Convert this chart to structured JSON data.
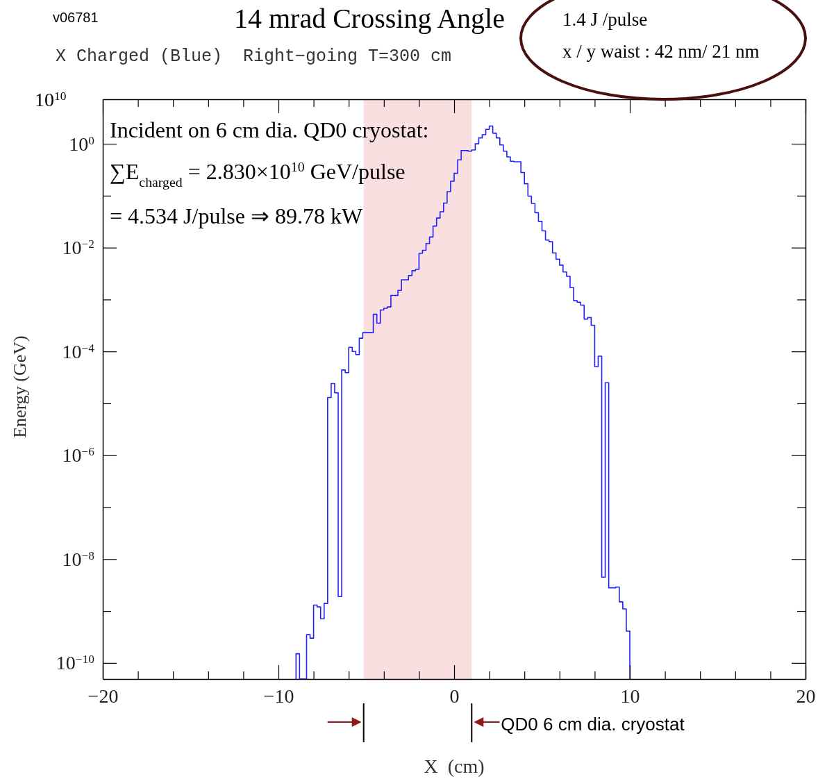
{
  "chart_data": {
    "type": "histogram",
    "title": "14 mrad Crossing Angle",
    "subtitle": "X Charged (Blue)  Right−going T=300 cm",
    "xlabel": "X  (cm)",
    "ylabel": "Energy (GeV)",
    "annotations": [
      "10$^{10}$",
      "v06781",
      "1.4 J /pulse",
      "x / y waist : 42 nm/ 21 nm",
      "Incident on 6 cm dia. QD0 cryostat:",
      "∑E$_{charged}$ = 2.830×10$^{10}$ GeV/pulse",
      "= 4.534 J/pulse ⇒ 89.78 kW"
    ],
    "bins": [
      -9.0,
      -8.8,
      -8.6,
      -8.4,
      -8.2,
      -8.0,
      -7.8,
      -7.6,
      -7.4,
      -7.2,
      -7.0,
      -6.8,
      -6.6,
      -6.4,
      -6.2,
      -6.0,
      -5.8,
      -5.6,
      -5.4,
      -5.2,
      -5.0,
      -4.8,
      -4.6,
      -4.4,
      -4.2,
      -4.0,
      -3.8,
      -3.6,
      -3.4,
      -3.2,
      -3.0,
      -2.8,
      -2.6,
      -2.4,
      -2.2,
      -2.0,
      -1.8,
      -1.6,
      -1.4,
      -1.2,
      -1.0,
      -0.8,
      -0.6,
      -0.4,
      -0.2,
      0.0,
      0.2,
      0.4,
      0.6,
      0.8,
      1.0,
      1.2,
      1.4,
      1.6,
      1.8,
      2.0,
      2.2,
      2.4,
      2.6,
      2.8,
      3.0,
      3.2,
      3.4,
      3.6,
      3.8,
      4.0,
      4.2,
      4.4,
      4.6,
      4.8,
      5.0,
      5.2,
      5.4,
      5.6,
      5.8,
      6.0,
      6.2,
      6.4,
      6.6,
      6.8,
      7.0,
      7.2,
      7.4,
      7.6,
      7.8,
      8.0,
      8.2,
      8.4,
      8.6,
      8.8,
      9.0,
      9.2,
      9.4,
      9.6,
      9.8,
      10.0
    ],
    "values": [
      1.5e-10,
      null,
      null,
      3.5e-10,
      3e-10,
      1.3e-09,
      1.2e-09,
      7.1e-10,
      1.4e-09,
      1.3e-05,
      2.4e-05,
      1.6e-05,
      1.9e-09,
      4.4e-05,
      3.9e-05,
      0.00012,
      0.0001,
      8.7e-05,
      0.00018,
      0.00023,
      0.00023,
      0.00023,
      0.00052,
      0.00035,
      0.00063,
      0.00068,
      0.00072,
      0.0012,
      0.0012,
      0.0015,
      0.0024,
      0.0024,
      0.0029,
      0.0036,
      0.0038,
      0.0078,
      0.0089,
      0.012,
      0.016,
      0.026,
      0.037,
      0.049,
      0.072,
      0.12,
      0.19,
      0.27,
      0.49,
      0.74,
      0.74,
      0.72,
      0.76,
      1.0,
      1.3,
      1.5,
      1.9,
      2.2,
      1.6,
      1.3,
      0.95,
      0.72,
      0.56,
      0.46,
      0.45,
      0.45,
      0.28,
      0.17,
      0.098,
      0.071,
      0.047,
      0.032,
      0.021,
      0.014,
      0.013,
      0.0079,
      0.006,
      0.0046,
      0.0034,
      0.0028,
      0.0017,
      0.00095,
      0.00089,
      0.00078,
      0.00042,
      0.00045,
      0.00032,
      5.1e-05,
      8.1e-05,
      4.5e-09,
      2.5e-05,
      2.8e-09,
      2.8e-09,
      2.9e-09,
      1.5e-09,
      1.1e-09,
      4.1e-10
    ],
    "color": "#2020ff",
    "log": "y",
    "xlim": [
      -20,
      20
    ],
    "xticks": [
      -20,
      {
        "value": -18,
        "label": null
      },
      {
        "value": -16,
        "label": null
      },
      {
        "value": -14,
        "label": null
      },
      {
        "value": -12,
        "label": null
      },
      {
        "value": -10,
        "label": "−10"
      },
      {
        "value": -8,
        "label": null
      },
      {
        "value": -6,
        "label": null
      },
      {
        "value": -4,
        "label": null
      },
      {
        "value": -2,
        "label": null
      },
      0,
      {
        "value": 2,
        "label": null
      },
      {
        "value": 4,
        "label": null
      },
      {
        "value": 6,
        "label": null
      },
      {
        "value": 8,
        "label": null
      },
      10,
      {
        "value": 12,
        "label": null
      },
      {
        "value": 14,
        "label": null
      },
      {
        "value": 16,
        "label": null
      },
      {
        "value": 18,
        "label": null
      },
      20
    ],
    "ylim": [
      4.9e-11,
      7.2
    ],
    "yticks": [
      {
        "value": 1e-10,
        "label": "10$^{−10}$"
      },
      {
        "value": 1e-09,
        "label": null
      },
      {
        "value": 1e-08,
        "label": "10$^{−8}$"
      },
      {
        "value": 1e-07,
        "label": null
      },
      {
        "value": 1e-06,
        "label": "10$^{−6}$"
      },
      {
        "value": 1e-05,
        "label": null
      },
      {
        "value": 0.0001,
        "label": "10$^{−4}$"
      },
      {
        "value": 0.001,
        "label": null
      },
      {
        "value": 0.01,
        "label": "10$^{−2}$"
      },
      {
        "value": 0.1,
        "label": null
      },
      {
        "value": 1,
        "label": "10$^{0}$"
      }
    ],
    "bands": [
      {
        "axis": "x",
        "from": -5.15,
        "to": 1.0,
        "label": "QD0 6 cm dia. cryostat",
        "color": "#f9dfe0"
      }
    ]
  }
}
